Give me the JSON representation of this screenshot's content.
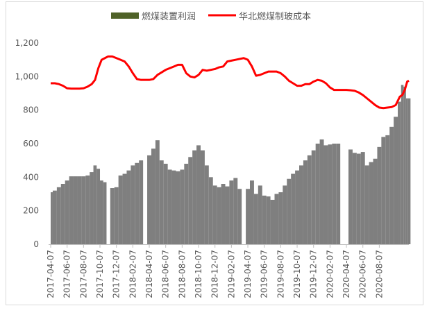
{
  "chart_data": {
    "type": "bar+line",
    "title": "",
    "legend_position": "top",
    "series": [
      {
        "name": "燃煤装置利润",
        "kind": "bar",
        "color": "#7f7f7f",
        "legend_color": "#4f6228"
      },
      {
        "name": "华北燃煤制玻成本",
        "kind": "line",
        "color": "#ff0000"
      }
    ],
    "ylim": [
      0,
      1200
    ],
    "yticks": [
      "0",
      "200",
      "400",
      "600",
      "800",
      "1,000",
      "1,200"
    ],
    "ytick_values": [
      0,
      200,
      400,
      600,
      800,
      1000,
      1200
    ],
    "xticks": [
      "2017-04-07",
      "2017-06-07",
      "2017-08-07",
      "2017-10-07",
      "2017-12-07",
      "2018-02-07",
      "2018-04-07",
      "2018-06-07",
      "2018-08-07",
      "2018-10-07",
      "2018-12-07",
      "2019-02-07",
      "2019-04-07",
      "2019-06-07",
      "2019-08-07",
      "2019-10-07",
      "2019-12-07",
      "2020-02-07",
      "2020-04-07",
      "2020-06-07",
      "2020-08-07"
    ],
    "points": [
      {
        "m": 0.0,
        "bar": 310,
        "line": 960
      },
      {
        "m": 0.25,
        "bar": 320,
        "line": 960
      },
      {
        "m": 0.5,
        "bar": 340,
        "line": 955
      },
      {
        "m": 0.75,
        "bar": 360,
        "line": 945
      },
      {
        "m": 1.0,
        "bar": 380,
        "line": 930
      },
      {
        "m": 1.25,
        "bar": 405,
        "line": 928
      },
      {
        "m": 1.5,
        "bar": 405,
        "line": 928
      },
      {
        "m": 1.75,
        "bar": 405,
        "line": 928
      },
      {
        "m": 2.0,
        "bar": 405,
        "line": 930
      },
      {
        "m": 2.25,
        "bar": 410,
        "line": 940
      },
      {
        "m": 2.5,
        "bar": 430,
        "line": 955
      },
      {
        "m": 2.7,
        "bar": 470,
        "line": 980
      },
      {
        "m": 2.9,
        "bar": 450,
        "line": 1050
      },
      {
        "m": 3.1,
        "bar": 380,
        "line": 1100
      },
      {
        "m": 3.3,
        "bar": 370,
        "line": 1110
      },
      {
        "m": 3.5,
        "bar": null,
        "line": 1120
      },
      {
        "m": 3.75,
        "bar": 335,
        "line": 1120
      },
      {
        "m": 4.0,
        "bar": 340,
        "line": 1110
      },
      {
        "m": 4.25,
        "bar": 410,
        "line": 1100
      },
      {
        "m": 4.5,
        "bar": 420,
        "line": 1090
      },
      {
        "m": 4.75,
        "bar": 440,
        "line": 1060
      },
      {
        "m": 5.0,
        "bar": 470,
        "line": 1020
      },
      {
        "m": 5.25,
        "bar": 485,
        "line": 985
      },
      {
        "m": 5.5,
        "bar": 500,
        "line": 980
      },
      {
        "m": 5.75,
        "bar": null,
        "line": 980
      },
      {
        "m": 6.0,
        "bar": 530,
        "line": 980
      },
      {
        "m": 6.25,
        "bar": 570,
        "line": 985
      },
      {
        "m": 6.5,
        "bar": 620,
        "line": 1010
      },
      {
        "m": 6.75,
        "bar": 500,
        "line": 1025
      },
      {
        "m": 7.0,
        "bar": 480,
        "line": 1040
      },
      {
        "m": 7.25,
        "bar": 445,
        "line": 1050
      },
      {
        "m": 7.5,
        "bar": 440,
        "line": 1060
      },
      {
        "m": 7.75,
        "bar": 435,
        "line": 1070
      },
      {
        "m": 8.0,
        "bar": 445,
        "line": 1070
      },
      {
        "m": 8.25,
        "bar": 480,
        "line": 1020
      },
      {
        "m": 8.5,
        "bar": 520,
        "line": 1000
      },
      {
        "m": 8.75,
        "bar": 560,
        "line": 995
      },
      {
        "m": 9.0,
        "bar": 590,
        "line": 1010
      },
      {
        "m": 9.25,
        "bar": 560,
        "line": 1040
      },
      {
        "m": 9.5,
        "bar": 470,
        "line": 1035
      },
      {
        "m": 9.75,
        "bar": 400,
        "line": 1040
      },
      {
        "m": 10.0,
        "bar": 350,
        "line": 1045
      },
      {
        "m": 10.25,
        "bar": 340,
        "line": 1055
      },
      {
        "m": 10.5,
        "bar": 360,
        "line": 1060
      },
      {
        "m": 10.75,
        "bar": 345,
        "line": 1090
      },
      {
        "m": 11.0,
        "bar": 380,
        "line": 1095
      },
      {
        "m": 11.25,
        "bar": 395,
        "line": 1100
      },
      {
        "m": 11.5,
        "bar": 330,
        "line": 1105
      },
      {
        "m": 11.75,
        "bar": null,
        "line": 1110
      },
      {
        "m": 12.0,
        "bar": 330,
        "line": 1100
      },
      {
        "m": 12.25,
        "bar": 380,
        "line": 1060
      },
      {
        "m": 12.5,
        "bar": 300,
        "line": 1005
      },
      {
        "m": 12.75,
        "bar": 350,
        "line": 1010
      },
      {
        "m": 13.0,
        "bar": 290,
        "line": 1020
      },
      {
        "m": 13.25,
        "bar": 285,
        "line": 1030
      },
      {
        "m": 13.5,
        "bar": 265,
        "line": 1030
      },
      {
        "m": 13.75,
        "bar": 300,
        "line": 1030
      },
      {
        "m": 14.0,
        "bar": 310,
        "line": 1020
      },
      {
        "m": 14.25,
        "bar": 350,
        "line": 1000
      },
      {
        "m": 14.5,
        "bar": 390,
        "line": 975
      },
      {
        "m": 14.75,
        "bar": 420,
        "line": 960
      },
      {
        "m": 15.0,
        "bar": 440,
        "line": 945
      },
      {
        "m": 15.25,
        "bar": 470,
        "line": 945
      },
      {
        "m": 15.5,
        "bar": 500,
        "line": 955
      },
      {
        "m": 15.75,
        "bar": 530,
        "line": 955
      },
      {
        "m": 16.0,
        "bar": 560,
        "line": 970
      },
      {
        "m": 16.25,
        "bar": 600,
        "line": 980
      },
      {
        "m": 16.5,
        "bar": 625,
        "line": 975
      },
      {
        "m": 16.75,
        "bar": 590,
        "line": 960
      },
      {
        "m": 17.0,
        "bar": 595,
        "line": 935
      },
      {
        "m": 17.25,
        "bar": 600,
        "line": 920
      },
      {
        "m": 17.5,
        "bar": 600,
        "line": 920
      },
      {
        "m": 17.75,
        "bar": null,
        "line": 920
      },
      {
        "m": 18.0,
        "bar": null,
        "line": 920
      },
      {
        "m": 18.25,
        "bar": 565,
        "line": 918
      },
      {
        "m": 18.5,
        "bar": 545,
        "line": 915
      },
      {
        "m": 18.75,
        "bar": 540,
        "line": 905
      },
      {
        "m": 19.0,
        "bar": 550,
        "line": 890
      },
      {
        "m": 19.25,
        "bar": 470,
        "line": 870
      },
      {
        "m": 19.5,
        "bar": 490,
        "line": 850
      },
      {
        "m": 19.75,
        "bar": 510,
        "line": 830
      },
      {
        "m": 20.0,
        "bar": 580,
        "line": 815
      },
      {
        "m": 20.25,
        "bar": 640,
        "line": 812
      },
      {
        "m": 20.5,
        "bar": 650,
        "line": 815
      },
      {
        "m": 20.75,
        "bar": 700,
        "line": 818
      },
      {
        "m": 21.0,
        "bar": 760,
        "line": 830
      },
      {
        "m": 21.25,
        "bar": 850,
        "line": 880
      },
      {
        "m": 21.4,
        "bar": 950,
        "line": 890
      },
      {
        "m": 21.55,
        "bar": 940,
        "line": 920
      },
      {
        "m": 21.7,
        "bar": 870,
        "line": 970
      },
      {
        "m": 21.8,
        "bar": 870,
        "line": 975
      }
    ]
  }
}
